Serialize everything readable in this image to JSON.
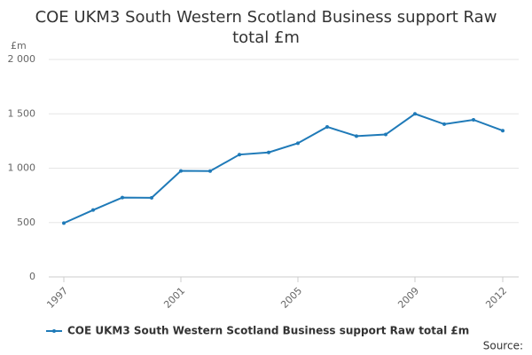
{
  "chart_data": {
    "type": "line",
    "title": "COE UKM3 South Western Scotland Business support Raw total £m",
    "y_label": "£m",
    "source": "Source:",
    "x": [
      1997,
      1998,
      1999,
      2000,
      2001,
      2002,
      2003,
      2004,
      2005,
      2006,
      2007,
      2008,
      2009,
      2010,
      2011,
      2012
    ],
    "xlim": [
      1997,
      2012
    ],
    "xticks": [
      1997,
      2001,
      2005,
      2009,
      2012
    ],
    "ylim": [
      0,
      2000
    ],
    "yticks": [
      0,
      500,
      {
        "value": 1000,
        "label": "1 000"
      },
      {
        "value": 1500,
        "label": "1 500"
      },
      {
        "value": 2000,
        "label": "2 000"
      }
    ],
    "grid": true,
    "series": [
      {
        "name": "COE UKM3 South Western Scotland Business support Raw total £m",
        "color": "#1f7ab8",
        "values": [
          495,
          615,
          730,
          728,
          975,
          973,
          1125,
          1145,
          1230,
          1380,
          1295,
          1310,
          1500,
          1405,
          1445,
          1345
        ]
      }
    ]
  }
}
